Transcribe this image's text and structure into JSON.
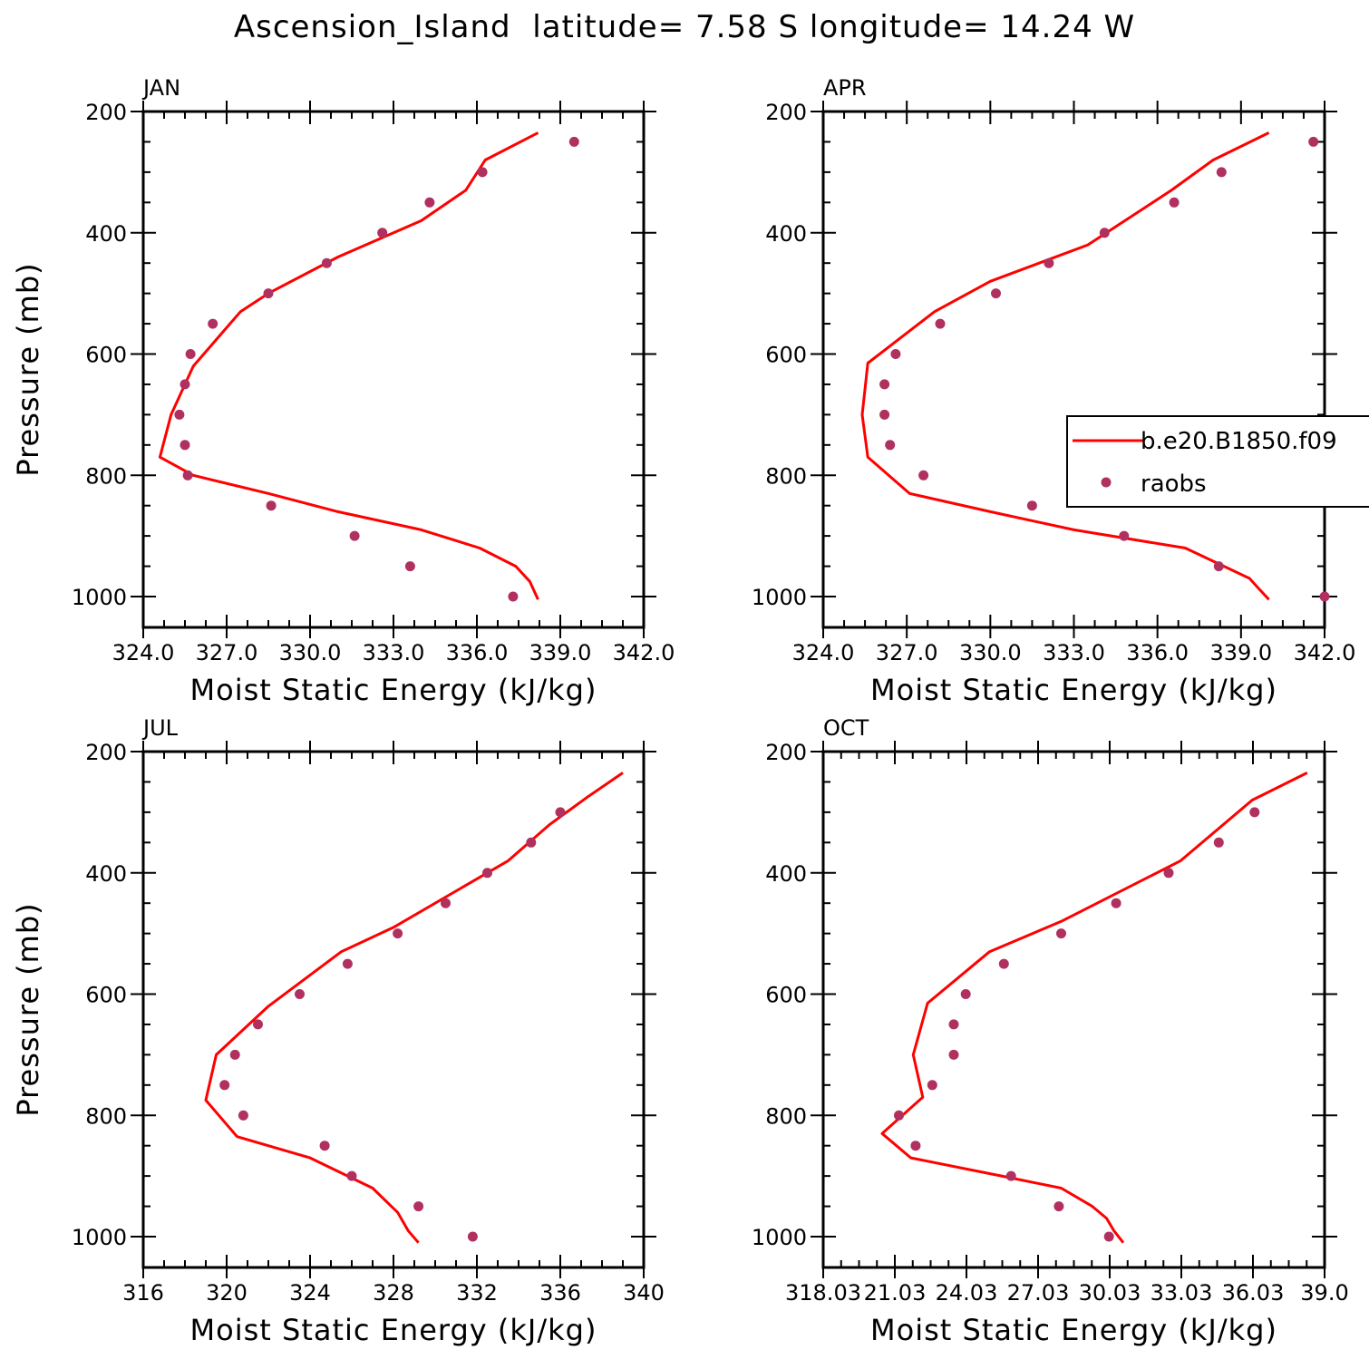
{
  "title": "Ascension_Island  latitude= 7.58 S longitude= 14.24 W",
  "legend": {
    "model_label": "b.e20.B1850.f09",
    "obs_label": "raobs"
  },
  "colors": {
    "model": "#ff0000",
    "obs": "#b03060",
    "axis": "#000000"
  },
  "chart_data": [
    {
      "type": "line",
      "panel": "JAN",
      "xlabel": "Moist Static Energy (kJ/kg)",
      "ylabel": "Pressure (mb)",
      "xlim": [
        324.0,
        342.0
      ],
      "ylim": [
        1000,
        200
      ],
      "xticks": [
        "324.0",
        "327.0",
        "330.0",
        "333.0",
        "336.0",
        "339.0",
        "342.0"
      ],
      "yticks": [
        "200",
        "400",
        "600",
        "800",
        "1000"
      ],
      "legend_visible": false,
      "series": [
        {
          "name": "b.e20.B1850.f09",
          "kind": "line",
          "x": [
            338.2,
            337.9,
            337.4,
            336.1,
            334.0,
            331.0,
            328.5,
            325.8,
            324.6,
            325.0,
            325.8,
            327.5,
            328.5,
            331.0,
            334.0,
            335.6,
            336.3,
            338.2
          ],
          "y": [
            1005,
            975,
            950,
            920,
            890,
            860,
            830,
            800,
            770,
            700,
            620,
            530,
            500,
            440,
            380,
            330,
            280,
            235
          ]
        },
        {
          "name": "raobs",
          "kind": "scatter",
          "x": [
            337.3,
            333.6,
            331.6,
            328.6,
            325.6,
            325.5,
            325.3,
            325.5,
            325.7,
            326.5,
            328.5,
            330.6,
            332.6,
            334.3,
            336.2,
            339.5
          ],
          "y": [
            1000,
            950,
            900,
            850,
            800,
            750,
            700,
            650,
            600,
            550,
            500,
            450,
            400,
            350,
            300,
            250
          ]
        }
      ]
    },
    {
      "type": "line",
      "panel": "APR",
      "xlabel": "Moist Static Energy (kJ/kg)",
      "ylabel": "",
      "xlim": [
        324.0,
        342.0
      ],
      "ylim": [
        1000,
        200
      ],
      "xticks": [
        "324.0",
        "327.0",
        "330.0",
        "333.0",
        "336.0",
        "339.0",
        "342.0"
      ],
      "yticks": [
        "200",
        "400",
        "600",
        "800",
        "1000"
      ],
      "legend_visible": true,
      "legend_position": "right",
      "series": [
        {
          "name": "b.e20.B1850.f09",
          "kind": "line",
          "x": [
            340.0,
            339.6,
            339.3,
            337.0,
            333.0,
            330.0,
            327.1,
            325.6,
            325.4,
            325.6,
            328.0,
            330.0,
            333.5,
            336.5,
            338.0,
            340.0
          ],
          "y": [
            1005,
            985,
            970,
            920,
            890,
            860,
            830,
            770,
            700,
            615,
            530,
            480,
            420,
            330,
            280,
            235
          ]
        },
        {
          "name": "raobs",
          "kind": "scatter",
          "x": [
            342.0,
            338.2,
            334.8,
            331.5,
            327.6,
            326.4,
            326.2,
            326.2,
            326.6,
            328.2,
            330.2,
            332.1,
            334.1,
            336.6,
            338.3,
            341.6
          ],
          "y": [
            1000,
            950,
            900,
            850,
            800,
            750,
            700,
            650,
            600,
            550,
            500,
            450,
            400,
            350,
            300,
            250
          ]
        }
      ]
    },
    {
      "type": "line",
      "panel": "JUL",
      "xlabel": "Moist Static Energy (kJ/kg)",
      "ylabel": "Pressure (mb)",
      "xlim": [
        316,
        340
      ],
      "ylim": [
        1000,
        200
      ],
      "xticks": [
        "316",
        "320",
        "324",
        "328",
        "332",
        "336",
        "340"
      ],
      "yticks": [
        "200",
        "400",
        "600",
        "800",
        "1000"
      ],
      "legend_visible": false,
      "series": [
        {
          "name": "b.e20.B1850.f09",
          "kind": "line",
          "x": [
            329.2,
            328.7,
            328.2,
            327.0,
            324.0,
            320.5,
            319.0,
            319.5,
            322.0,
            325.5,
            328.0,
            333.5,
            335.5,
            337.3,
            339.0
          ],
          "y": [
            1010,
            990,
            960,
            920,
            870,
            835,
            775,
            700,
            620,
            530,
            490,
            380,
            320,
            275,
            235
          ]
        },
        {
          "name": "raobs",
          "kind": "scatter",
          "x": [
            331.8,
            329.2,
            326.0,
            324.7,
            320.8,
            319.9,
            320.4,
            321.5,
            323.5,
            325.8,
            328.2,
            330.5,
            332.5,
            334.6,
            336.0
          ],
          "y": [
            1000,
            950,
            900,
            850,
            800,
            750,
            700,
            650,
            600,
            550,
            500,
            450,
            400,
            350,
            300
          ]
        }
      ]
    },
    {
      "type": "line",
      "panel": "OCT",
      "xlabel": "Moist Static Energy (kJ/kg)",
      "ylabel": "",
      "xlim": [
        318.03,
        339.03
      ],
      "ylim": [
        1000,
        200
      ],
      "xticks": [
        "318.03",
        "21.03",
        "24.03",
        "27.03",
        "30.03",
        "33.03",
        "36.03",
        "39.0"
      ],
      "xtick_values": [
        318.03,
        321.03,
        324.03,
        327.03,
        330.03,
        333.03,
        336.03,
        339.03
      ],
      "yticks": [
        "200",
        "400",
        "600",
        "800",
        "1000"
      ],
      "legend_visible": false,
      "series": [
        {
          "name": "b.e20.B1850.f09",
          "kind": "line",
          "x": [
            330.6,
            330.2,
            329.9,
            329.3,
            328.0,
            325.5,
            321.7,
            320.5,
            322.2,
            321.8,
            322.4,
            325.0,
            328.0,
            333.0,
            336.0,
            338.3
          ],
          "y": [
            1010,
            990,
            970,
            950,
            920,
            900,
            870,
            830,
            770,
            700,
            615,
            530,
            480,
            380,
            280,
            235
          ]
        },
        {
          "name": "raobs",
          "kind": "scatter",
          "x": [
            330.0,
            327.9,
            325.9,
            321.9,
            321.2,
            322.6,
            323.5,
            323.5,
            324.0,
            325.6,
            328.0,
            330.3,
            332.5,
            334.6,
            336.1
          ],
          "y": [
            1000,
            950,
            900,
            850,
            800,
            750,
            700,
            650,
            600,
            550,
            500,
            450,
            400,
            350,
            300
          ]
        }
      ]
    }
  ]
}
